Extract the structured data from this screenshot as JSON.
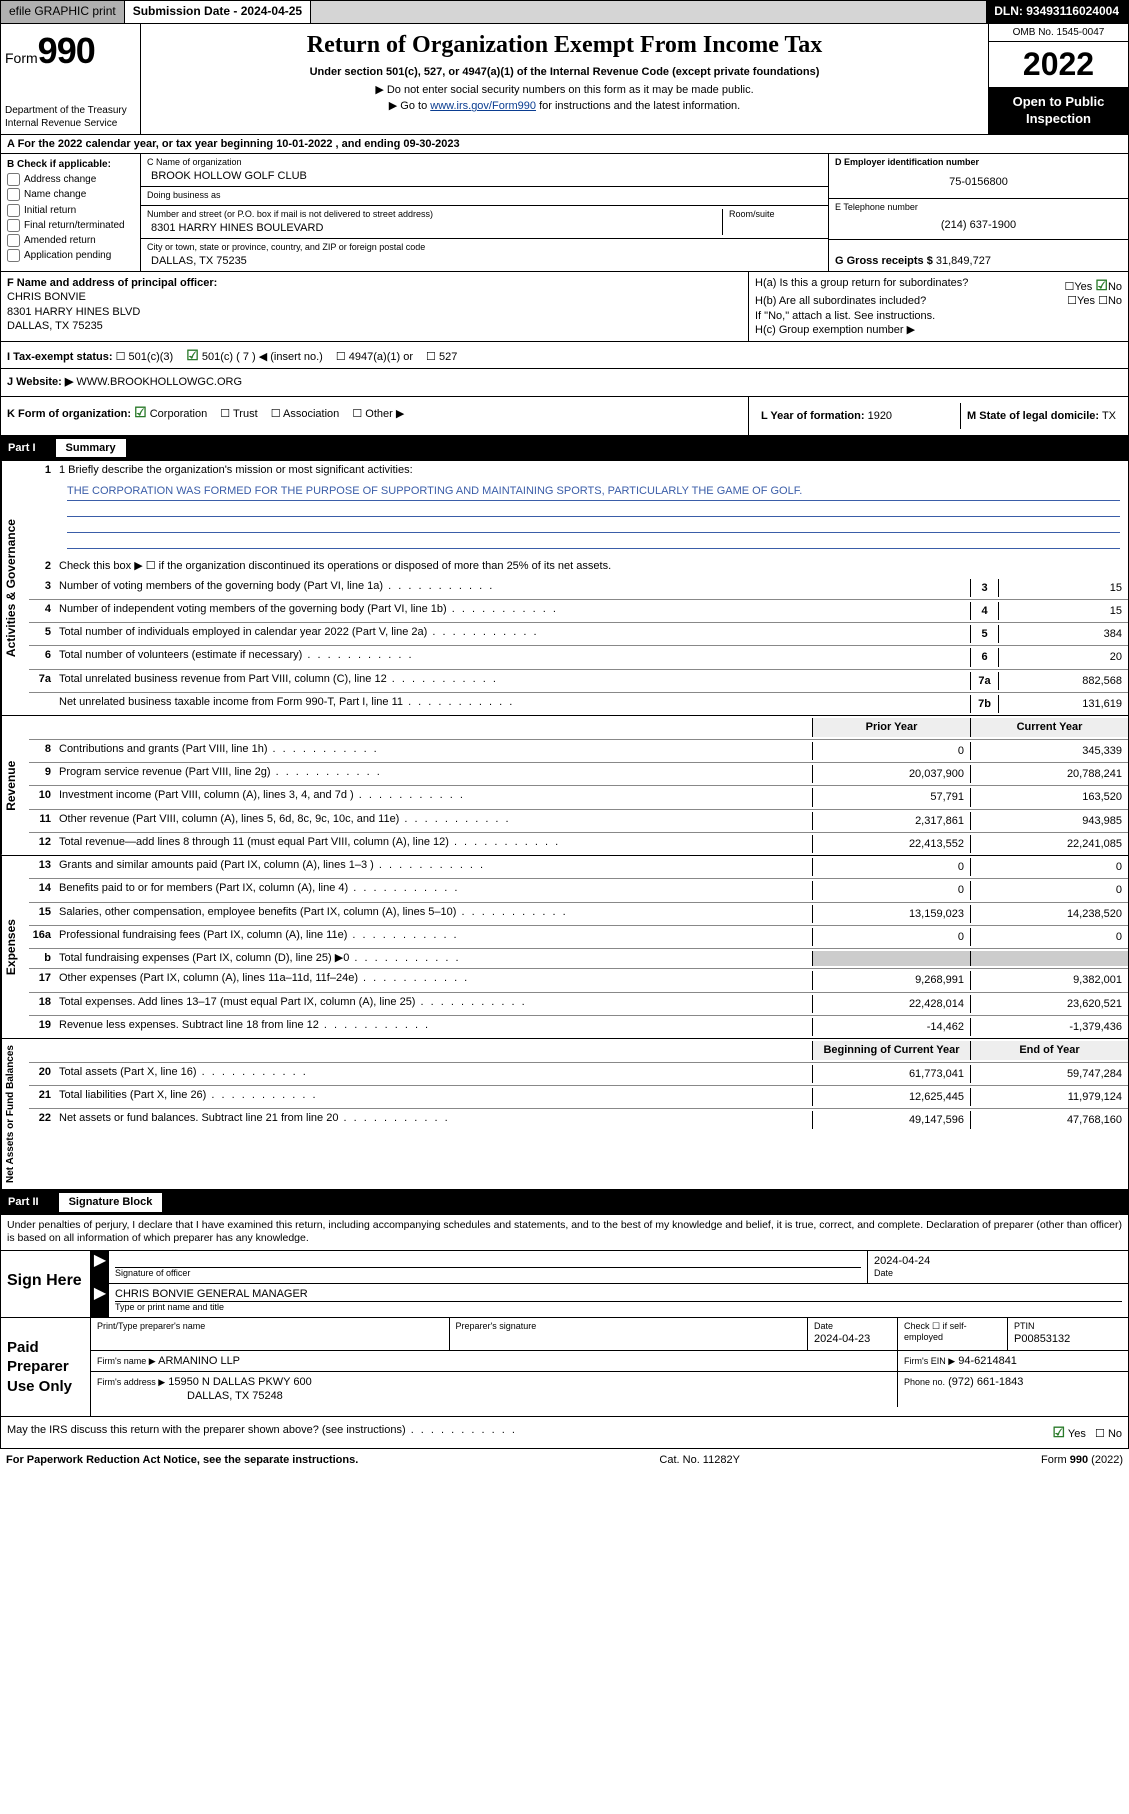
{
  "topbar": {
    "efile": "efile GRAPHIC print",
    "submission_label": "Submission Date - 2024-04-25",
    "dln": "DLN: 93493116024004"
  },
  "header": {
    "form_word": "Form",
    "form_num": "990",
    "dept": "Department of the Treasury Internal Revenue Service",
    "title": "Return of Organization Exempt From Income Tax",
    "subtitle": "Under section 501(c), 527, or 4947(a)(1) of the Internal Revenue Code (except private foundations)",
    "note1": "▶ Do not enter social security numbers on this form as it may be made public.",
    "note2_pre": "▶ Go to ",
    "note2_link": "www.irs.gov/Form990",
    "note2_post": " for instructions and the latest information.",
    "omb": "OMB No. 1545-0047",
    "year": "2022",
    "inspect": "Open to Public Inspection"
  },
  "row_a": "A For the 2022 calendar year, or tax year beginning 10-01-2022   , and ending 09-30-2023",
  "box_b": {
    "label": "B Check if applicable:",
    "opts": [
      "Address change",
      "Name change",
      "Initial return",
      "Final return/terminated",
      "Amended return",
      "Application pending"
    ]
  },
  "box_c": {
    "name_label": "C Name of organization",
    "name": "BROOK HOLLOW GOLF CLUB",
    "dba_label": "Doing business as",
    "dba": "",
    "addr_label": "Number and street (or P.O. box if mail is not delivered to street address)",
    "room_label": "Room/suite",
    "addr": "8301 HARRY HINES BOULEVARD",
    "city_label": "City or town, state or province, country, and ZIP or foreign postal code",
    "city": "DALLAS, TX  75235"
  },
  "box_d": {
    "label": "D Employer identification number",
    "value": "75-0156800"
  },
  "box_e": {
    "label": "E Telephone number",
    "value": "(214) 637-1900"
  },
  "box_g": {
    "label": "G Gross receipts $",
    "value": "31,849,727"
  },
  "box_f": {
    "label": "F Name and address of principal officer:",
    "name": "CHRIS BONVIE",
    "addr1": "8301 HARRY HINES BLVD",
    "addr2": "DALLAS, TX  75235"
  },
  "box_h": {
    "ha": "H(a)  Is this a group return for subordinates?",
    "hb": "H(b)  Are all subordinates included?",
    "hb_note": "If \"No,\" attach a list. See instructions.",
    "hc": "H(c)  Group exemption number ▶",
    "yes": "Yes",
    "no": "No"
  },
  "row_i": {
    "label": "I   Tax-exempt status:",
    "c501c3": "501(c)(3)",
    "c501c": "501(c) ( 7 ) ◀ (insert no.)",
    "c4947": "4947(a)(1) or",
    "c527": "527"
  },
  "row_j": {
    "label": "J   Website: ▶",
    "value": "WWW.BROOKHOLLOWGC.ORG"
  },
  "row_k": {
    "label": "K Form of organization:",
    "opts": [
      "Corporation",
      "Trust",
      "Association",
      "Other ▶"
    ],
    "l_label": "L Year of formation:",
    "l_value": "1920",
    "m_label": "M State of legal domicile:",
    "m_value": "TX"
  },
  "part1": {
    "no": "Part I",
    "name": "Summary"
  },
  "summary": {
    "mission_label": "1   Briefly describe the organization's mission or most significant activities:",
    "mission": "THE CORPORATION WAS FORMED FOR THE PURPOSE OF SUPPORTING AND MAINTAINING SPORTS, PARTICULARLY THE GAME OF GOLF.",
    "line2": "Check this box ▶ ☐  if the organization discontinued its operations or disposed of more than 25% of its net assets.",
    "lines_single": [
      {
        "n": "3",
        "t": "Number of voting members of the governing body (Part VI, line 1a)",
        "box": "3",
        "v": "15"
      },
      {
        "n": "4",
        "t": "Number of independent voting members of the governing body (Part VI, line 1b)",
        "box": "4",
        "v": "15"
      },
      {
        "n": "5",
        "t": "Total number of individuals employed in calendar year 2022 (Part V, line 2a)",
        "box": "5",
        "v": "384"
      },
      {
        "n": "6",
        "t": "Total number of volunteers (estimate if necessary)",
        "box": "6",
        "v": "20"
      },
      {
        "n": "7a",
        "t": "Total unrelated business revenue from Part VIII, column (C), line 12",
        "box": "7a",
        "v": "882,568"
      },
      {
        "n": "",
        "t": "Net unrelated business taxable income from Form 990-T, Part I, line 11",
        "box": "7b",
        "v": "131,619"
      }
    ],
    "hdr_prior": "Prior Year",
    "hdr_cur": "Current Year",
    "lines_two": [
      {
        "n": "8",
        "t": "Contributions and grants (Part VIII, line 1h)",
        "p": "0",
        "c": "345,339"
      },
      {
        "n": "9",
        "t": "Program service revenue (Part VIII, line 2g)",
        "p": "20,037,900",
        "c": "20,788,241"
      },
      {
        "n": "10",
        "t": "Investment income (Part VIII, column (A), lines 3, 4, and 7d )",
        "p": "57,791",
        "c": "163,520"
      },
      {
        "n": "11",
        "t": "Other revenue (Part VIII, column (A), lines 5, 6d, 8c, 9c, 10c, and 11e)",
        "p": "2,317,861",
        "c": "943,985"
      },
      {
        "n": "12",
        "t": "Total revenue—add lines 8 through 11 (must equal Part VIII, column (A), line 12)",
        "p": "22,413,552",
        "c": "22,241,085"
      }
    ],
    "lines_exp": [
      {
        "n": "13",
        "t": "Grants and similar amounts paid (Part IX, column (A), lines 1–3 )",
        "p": "0",
        "c": "0"
      },
      {
        "n": "14",
        "t": "Benefits paid to or for members (Part IX, column (A), line 4)",
        "p": "0",
        "c": "0"
      },
      {
        "n": "15",
        "t": "Salaries, other compensation, employee benefits (Part IX, column (A), lines 5–10)",
        "p": "13,159,023",
        "c": "14,238,520"
      },
      {
        "n": "16a",
        "t": "Professional fundraising fees (Part IX, column (A), line 11e)",
        "p": "0",
        "c": "0"
      },
      {
        "n": "b",
        "t": "Total fundraising expenses (Part IX, column (D), line 25) ▶0",
        "p": "grey",
        "c": "grey"
      },
      {
        "n": "17",
        "t": "Other expenses (Part IX, column (A), lines 11a–11d, 11f–24e)",
        "p": "9,268,991",
        "c": "9,382,001"
      },
      {
        "n": "18",
        "t": "Total expenses. Add lines 13–17 (must equal Part IX, column (A), line 25)",
        "p": "22,428,014",
        "c": "23,620,521"
      },
      {
        "n": "19",
        "t": "Revenue less expenses. Subtract line 18 from line 12",
        "p": "-14,462",
        "c": "-1,379,436"
      }
    ],
    "hdr_beg": "Beginning of Current Year",
    "hdr_end": "End of Year",
    "lines_net": [
      {
        "n": "20",
        "t": "Total assets (Part X, line 16)",
        "p": "61,773,041",
        "c": "59,747,284"
      },
      {
        "n": "21",
        "t": "Total liabilities (Part X, line 26)",
        "p": "12,625,445",
        "c": "11,979,124"
      },
      {
        "n": "22",
        "t": "Net assets or fund balances. Subtract line 21 from line 20",
        "p": "49,147,596",
        "c": "47,768,160"
      }
    ],
    "tabs": [
      "Activities & Governance",
      "Revenue",
      "Expenses",
      "Net Assets or Fund Balances"
    ]
  },
  "part2": {
    "no": "Part II",
    "name": "Signature Block"
  },
  "sig": {
    "intro": "Under penalties of perjury, I declare that I have examined this return, including accompanying schedules and statements, and to the best of my knowledge and belief, it is true, correct, and complete. Declaration of preparer (other than officer) is based on all information of which preparer has any knowledge.",
    "sign_here": "Sign Here",
    "sig_officer_label": "Signature of officer",
    "date1": "2024-04-24",
    "date_label": "Date",
    "officer": "CHRIS BONVIE  GENERAL MANAGER",
    "officer_label": "Type or print name and title",
    "paid": "Paid Preparer Use Only",
    "col_print": "Print/Type preparer's name",
    "col_sig": "Preparer's signature",
    "col_date": "Date",
    "date2": "2024-04-23",
    "col_check": "Check ☐ if self-employed",
    "col_ptin": "PTIN",
    "ptin": "P00853132",
    "firm_name_label": "Firm's name    ▶",
    "firm_name": "ARMANINO LLP",
    "firm_ein_label": "Firm's EIN ▶",
    "firm_ein": "94-6214841",
    "firm_addr_label": "Firm's address ▶",
    "firm_addr1": "15950 N DALLAS PKWY 600",
    "firm_addr2": "DALLAS, TX  75248",
    "phone_label": "Phone no.",
    "phone": "(972) 661-1843",
    "discuss": "May the IRS discuss this return with the preparer shown above? (see instructions)",
    "yes": "Yes",
    "no": "No"
  },
  "footer": {
    "left": "For Paperwork Reduction Act Notice, see the separate instructions.",
    "mid": "Cat. No. 11282Y",
    "right": "Form 990 (2022)"
  }
}
